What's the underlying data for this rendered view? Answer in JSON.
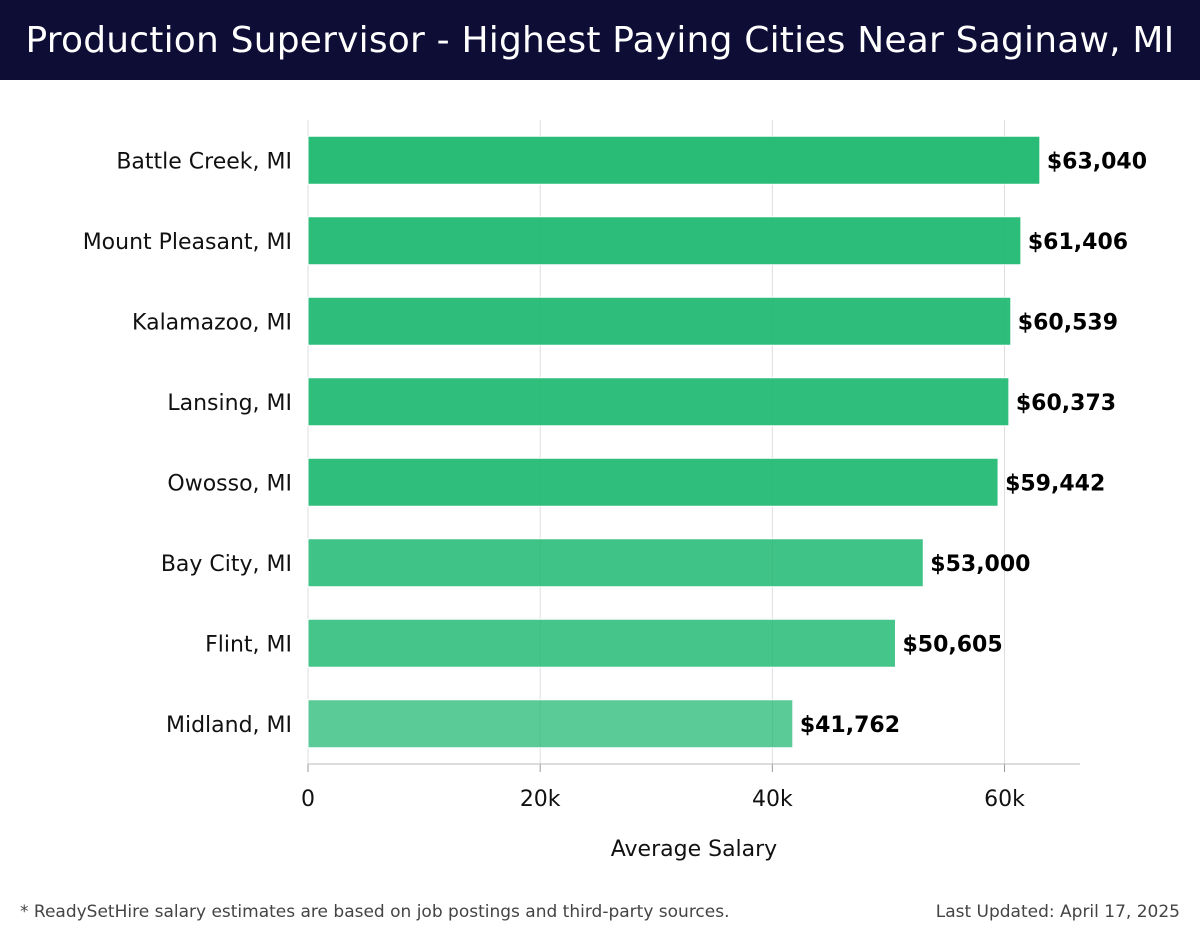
{
  "header": {
    "title": "Production Supervisor - Highest Paying Cities Near Saginaw, MI"
  },
  "footer": {
    "note": "* ReadySetHire salary estimates are based on job postings and third-party sources.",
    "updated": "Last Updated: April 17, 2025"
  },
  "chart_data": {
    "type": "bar",
    "orientation": "horizontal",
    "categories": [
      "Battle Creek, MI",
      "Mount Pleasant, MI",
      "Kalamazoo, MI",
      "Lansing, MI",
      "Owosso, MI",
      "Bay City, MI",
      "Flint, MI",
      "Midland, MI"
    ],
    "values": [
      63040,
      61406,
      60539,
      60373,
      59442,
      53000,
      50605,
      41762
    ],
    "value_labels": [
      "$63,040",
      "$61,406",
      "$60,539",
      "$60,373",
      "$59,442",
      "$53,000",
      "$50,605",
      "$41,762"
    ],
    "xlabel": "Average Salary",
    "ylabel": "",
    "xlim": [
      0,
      66500
    ],
    "xticks": [
      0,
      20000,
      40000,
      60000
    ],
    "xtick_labels": [
      "0",
      "20k",
      "40k",
      "60k"
    ],
    "grid": "vertical",
    "bar_color": "#1db870"
  }
}
